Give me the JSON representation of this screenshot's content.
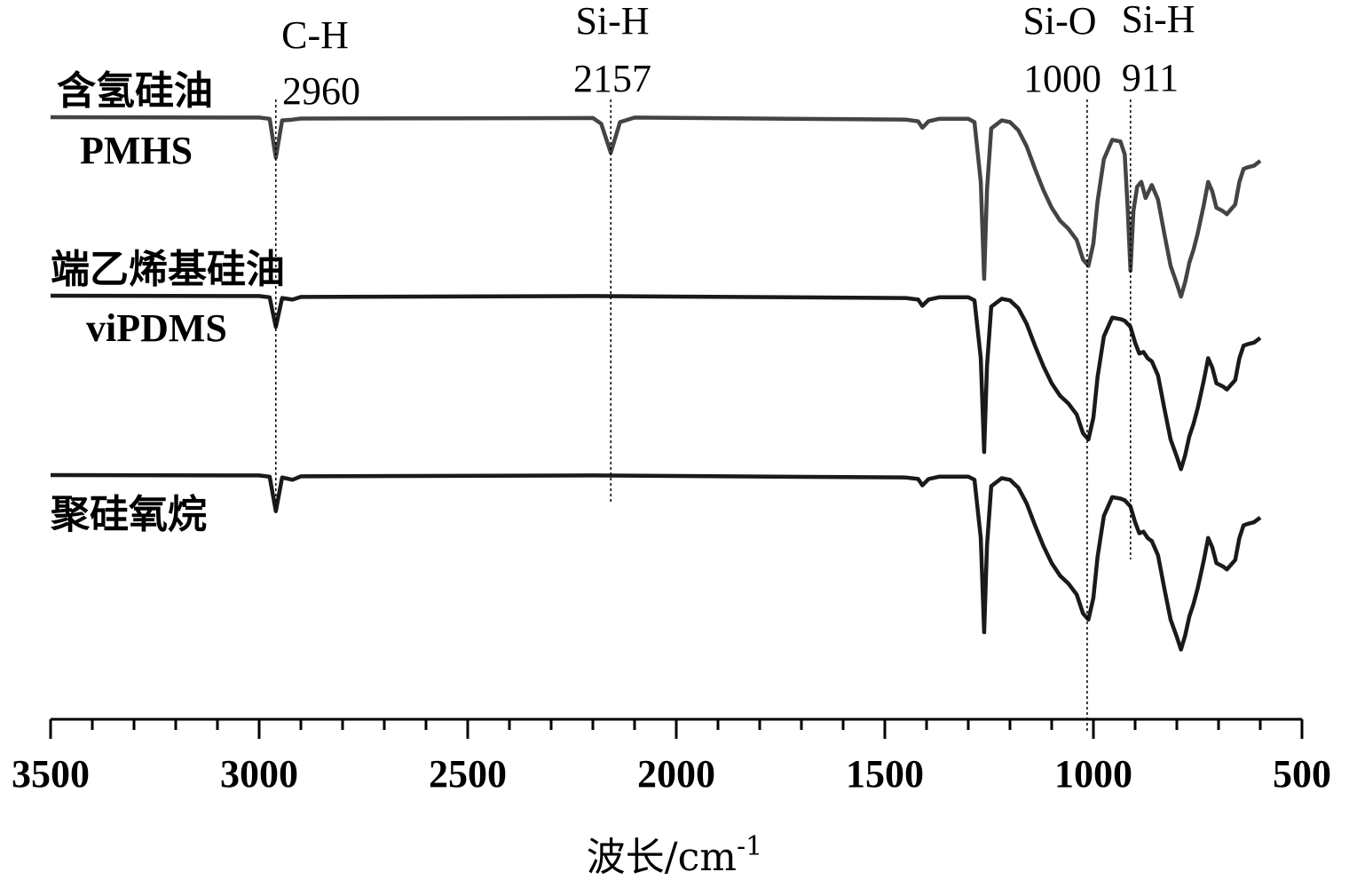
{
  "chart_data": {
    "type": "line",
    "xlabel": "波长/cm",
    "xlabel_sup": "-1",
    "ylabel": "",
    "xlim": [
      3500,
      500
    ],
    "x_reversed": true,
    "grid": false,
    "x_ticks_major": [
      3500,
      3000,
      2500,
      2000,
      1500,
      1000,
      500
    ],
    "x_tick_labels": [
      "3500",
      "3000",
      "2500",
      "2000",
      "1500",
      "1000",
      "500"
    ],
    "x_ticks_minor_step": 100,
    "colors": {
      "pmhs": "#444444",
      "vipdms": "#1a1a1a",
      "polysiloxane": "#1a1a1a",
      "axis": "#000000"
    },
    "annotations": [
      {
        "label": "C-H",
        "value": "2960",
        "x": 2960
      },
      {
        "label": "Si-H",
        "value": "2157",
        "x": 2157
      },
      {
        "label": "Si-O",
        "value": "1000",
        "x": 1015
      },
      {
        "label": "Si-H",
        "value": "911",
        "x": 911
      }
    ],
    "series": [
      {
        "key": "pmhs",
        "name": "含氢硅油",
        "name2": "PMHS",
        "offset": 0,
        "points": [
          [
            3500,
            1
          ],
          [
            3000,
            0.998
          ],
          [
            2975,
            0.99
          ],
          [
            2960,
            0.75
          ],
          [
            2945,
            0.98
          ],
          [
            2920,
            0.985
          ],
          [
            2900,
            0.992
          ],
          [
            2200,
            0.995
          ],
          [
            2180,
            0.96
          ],
          [
            2157,
            0.78
          ],
          [
            2135,
            0.97
          ],
          [
            2100,
            0.998
          ],
          [
            1450,
            0.985
          ],
          [
            1420,
            0.975
          ],
          [
            1410,
            0.935
          ],
          [
            1395,
            0.975
          ],
          [
            1370,
            0.99
          ],
          [
            1300,
            0.99
          ],
          [
            1285,
            0.97
          ],
          [
            1270,
            0.6
          ],
          [
            1262,
            0.0
          ],
          [
            1255,
            0.55
          ],
          [
            1245,
            0.93
          ],
          [
            1220,
            0.98
          ],
          [
            1200,
            0.97
          ],
          [
            1180,
            0.92
          ],
          [
            1160,
            0.82
          ],
          [
            1140,
            0.68
          ],
          [
            1120,
            0.55
          ],
          [
            1100,
            0.44
          ],
          [
            1080,
            0.36
          ],
          [
            1060,
            0.31
          ],
          [
            1040,
            0.24
          ],
          [
            1025,
            0.12
          ],
          [
            1012,
            0.08
          ],
          [
            1000,
            0.22
          ],
          [
            990,
            0.48
          ],
          [
            975,
            0.74
          ],
          [
            955,
            0.86
          ],
          [
            935,
            0.85
          ],
          [
            925,
            0.77
          ],
          [
            918,
            0.45
          ],
          [
            911,
            0.05
          ],
          [
            904,
            0.42
          ],
          [
            895,
            0.57
          ],
          [
            885,
            0.6
          ],
          [
            875,
            0.5
          ],
          [
            860,
            0.58
          ],
          [
            845,
            0.49
          ],
          [
            830,
            0.28
          ],
          [
            815,
            0.08
          ],
          [
            800,
            -0.03
          ],
          [
            790,
            -0.11
          ],
          [
            780,
            -0.02
          ],
          [
            770,
            0.1
          ],
          [
            760,
            0.18
          ],
          [
            750,
            0.28
          ],
          [
            735,
            0.46
          ],
          [
            725,
            0.6
          ],
          [
            715,
            0.54
          ],
          [
            705,
            0.44
          ],
          [
            690,
            0.42
          ],
          [
            680,
            0.4
          ],
          [
            670,
            0.43
          ],
          [
            660,
            0.46
          ],
          [
            650,
            0.6
          ],
          [
            640,
            0.68
          ],
          [
            630,
            0.69
          ],
          [
            615,
            0.7
          ],
          [
            600,
            0.73
          ]
        ]
      },
      {
        "key": "vipdms",
        "name": "端乙烯基硅油",
        "name2": "viPDMS",
        "offset": 1,
        "points": [
          [
            3500,
            1
          ],
          [
            3000,
            0.998
          ],
          [
            2975,
            0.99
          ],
          [
            2960,
            0.8
          ],
          [
            2945,
            0.985
          ],
          [
            2920,
            0.975
          ],
          [
            2900,
            0.992
          ],
          [
            2200,
            0.998
          ],
          [
            1450,
            0.985
          ],
          [
            1420,
            0.975
          ],
          [
            1410,
            0.935
          ],
          [
            1395,
            0.975
          ],
          [
            1370,
            0.99
          ],
          [
            1300,
            0.99
          ],
          [
            1285,
            0.97
          ],
          [
            1270,
            0.6
          ],
          [
            1262,
            0.0
          ],
          [
            1255,
            0.55
          ],
          [
            1245,
            0.93
          ],
          [
            1220,
            0.98
          ],
          [
            1200,
            0.97
          ],
          [
            1180,
            0.92
          ],
          [
            1160,
            0.82
          ],
          [
            1140,
            0.68
          ],
          [
            1120,
            0.55
          ],
          [
            1100,
            0.44
          ],
          [
            1080,
            0.36
          ],
          [
            1060,
            0.31
          ],
          [
            1040,
            0.24
          ],
          [
            1025,
            0.12
          ],
          [
            1012,
            0.08
          ],
          [
            1000,
            0.22
          ],
          [
            990,
            0.48
          ],
          [
            975,
            0.74
          ],
          [
            955,
            0.86
          ],
          [
            935,
            0.85
          ],
          [
            925,
            0.84
          ],
          [
            911,
            0.8
          ],
          [
            900,
            0.7
          ],
          [
            890,
            0.63
          ],
          [
            880,
            0.64
          ],
          [
            870,
            0.6
          ],
          [
            860,
            0.58
          ],
          [
            845,
            0.49
          ],
          [
            830,
            0.28
          ],
          [
            815,
            0.08
          ],
          [
            800,
            -0.03
          ],
          [
            790,
            -0.11
          ],
          [
            780,
            -0.02
          ],
          [
            770,
            0.1
          ],
          [
            760,
            0.18
          ],
          [
            750,
            0.28
          ],
          [
            735,
            0.46
          ],
          [
            725,
            0.6
          ],
          [
            715,
            0.54
          ],
          [
            705,
            0.44
          ],
          [
            690,
            0.42
          ],
          [
            680,
            0.4
          ],
          [
            670,
            0.43
          ],
          [
            660,
            0.46
          ],
          [
            650,
            0.6
          ],
          [
            640,
            0.68
          ],
          [
            630,
            0.69
          ],
          [
            615,
            0.7
          ],
          [
            600,
            0.73
          ]
        ]
      },
      {
        "key": "polysiloxane",
        "name": "聚硅氧烷",
        "name2": "",
        "offset": 2,
        "points": [
          [
            3500,
            1
          ],
          [
            3000,
            0.998
          ],
          [
            2975,
            0.99
          ],
          [
            2960,
            0.77
          ],
          [
            2945,
            0.985
          ],
          [
            2920,
            0.97
          ],
          [
            2900,
            0.992
          ],
          [
            2200,
            0.998
          ],
          [
            1450,
            0.985
          ],
          [
            1420,
            0.975
          ],
          [
            1410,
            0.935
          ],
          [
            1395,
            0.975
          ],
          [
            1370,
            0.99
          ],
          [
            1300,
            0.99
          ],
          [
            1285,
            0.97
          ],
          [
            1270,
            0.6
          ],
          [
            1262,
            0.0
          ],
          [
            1255,
            0.55
          ],
          [
            1245,
            0.93
          ],
          [
            1220,
            0.98
          ],
          [
            1200,
            0.97
          ],
          [
            1180,
            0.92
          ],
          [
            1160,
            0.82
          ],
          [
            1140,
            0.68
          ],
          [
            1120,
            0.55
          ],
          [
            1100,
            0.44
          ],
          [
            1080,
            0.36
          ],
          [
            1060,
            0.31
          ],
          [
            1040,
            0.24
          ],
          [
            1025,
            0.12
          ],
          [
            1012,
            0.08
          ],
          [
            1000,
            0.22
          ],
          [
            990,
            0.48
          ],
          [
            975,
            0.74
          ],
          [
            955,
            0.86
          ],
          [
            935,
            0.85
          ],
          [
            925,
            0.84
          ],
          [
            911,
            0.8
          ],
          [
            900,
            0.7
          ],
          [
            890,
            0.63
          ],
          [
            880,
            0.64
          ],
          [
            870,
            0.6
          ],
          [
            860,
            0.58
          ],
          [
            845,
            0.49
          ],
          [
            830,
            0.28
          ],
          [
            815,
            0.08
          ],
          [
            800,
            -0.03
          ],
          [
            790,
            -0.11
          ],
          [
            780,
            -0.02
          ],
          [
            770,
            0.1
          ],
          [
            760,
            0.18
          ],
          [
            750,
            0.28
          ],
          [
            735,
            0.46
          ],
          [
            725,
            0.6
          ],
          [
            715,
            0.54
          ],
          [
            705,
            0.44
          ],
          [
            690,
            0.42
          ],
          [
            680,
            0.4
          ],
          [
            670,
            0.43
          ],
          [
            660,
            0.46
          ],
          [
            650,
            0.6
          ],
          [
            640,
            0.68
          ],
          [
            630,
            0.69
          ],
          [
            615,
            0.7
          ],
          [
            600,
            0.73
          ]
        ]
      }
    ]
  }
}
